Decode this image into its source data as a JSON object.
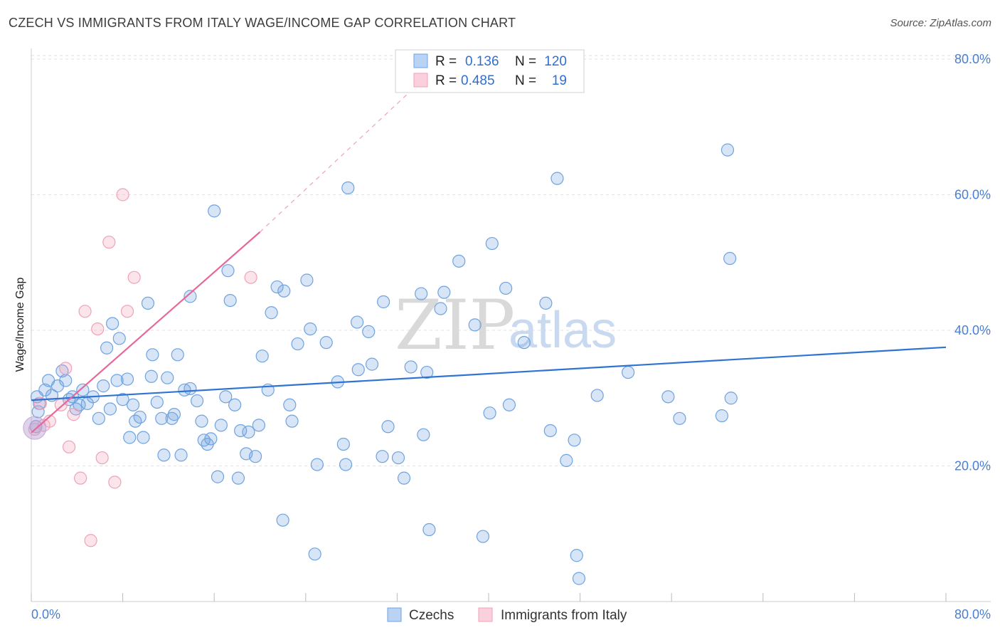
{
  "title": "CZECH VS IMMIGRANTS FROM ITALY WAGE/INCOME GAP CORRELATION CHART",
  "source": "Source: ZipAtlas.com",
  "watermark": {
    "zip": "ZIP",
    "atlas": "atlas"
  },
  "legend_box": {
    "rows": [
      {
        "r_label": "R =",
        "r_value": "0.136",
        "n_label": "N =",
        "n_value": "120",
        "color": "#6fa3e0"
      },
      {
        "r_label": "R =",
        "r_value": "0.485",
        "n_label": "N =",
        "n_value": "19",
        "color": "#f1a0b8"
      }
    ]
  },
  "bottom_legend": [
    {
      "label": "Czechs",
      "color": "#6fa3e0"
    },
    {
      "label": "Immigrants from Italy",
      "color": "#f1a0b8"
    }
  ],
  "chart_data": {
    "type": "scatter",
    "title": "CZECH VS IMMIGRANTS FROM ITALY WAGE/INCOME GAP CORRELATION CHART",
    "xlabel": "",
    "ylabel": "Wage/Income Gap",
    "xlim": [
      0,
      80
    ],
    "ylim": [
      0,
      87
    ],
    "y_ticks": [
      20,
      40,
      60,
      80
    ],
    "y_tick_labels": [
      "20.0%",
      "40.0%",
      "60.0%",
      "80.0%"
    ],
    "x_tick_labels": {
      "min": "0.0%",
      "max": "80.0%"
    },
    "grid": true,
    "series": [
      {
        "name": "Czechs",
        "color": "#6fa3e0",
        "trend": {
          "x0": 0,
          "y0": 29.7,
          "x1": 80,
          "y1": 37.5
        },
        "points": [
          [
            0.4,
            25.8
          ],
          [
            0.5,
            30.2
          ],
          [
            0.6,
            28.0
          ],
          [
            0.7,
            29.2
          ],
          [
            1.2,
            31.2
          ],
          [
            1.5,
            32.6
          ],
          [
            1.8,
            30.4
          ],
          [
            2.3,
            31.8
          ],
          [
            2.7,
            34.0
          ],
          [
            3.0,
            32.6
          ],
          [
            3.3,
            29.8
          ],
          [
            3.6,
            30.2
          ],
          [
            3.9,
            28.4
          ],
          [
            4.2,
            29.0
          ],
          [
            4.5,
            31.2
          ],
          [
            4.9,
            29.2
          ],
          [
            5.4,
            30.2
          ],
          [
            5.9,
            27.0
          ],
          [
            6.3,
            31.8
          ],
          [
            6.6,
            37.4
          ],
          [
            6.9,
            28.4
          ],
          [
            7.1,
            41.0
          ],
          [
            7.5,
            32.6
          ],
          [
            7.7,
            38.8
          ],
          [
            8.0,
            29.8
          ],
          [
            8.4,
            32.8
          ],
          [
            8.6,
            24.2
          ],
          [
            8.9,
            29.0
          ],
          [
            9.1,
            26.6
          ],
          [
            9.5,
            27.2
          ],
          [
            9.8,
            24.2
          ],
          [
            10.2,
            44.0
          ],
          [
            10.5,
            33.2
          ],
          [
            10.6,
            36.4
          ],
          [
            11.0,
            29.4
          ],
          [
            11.4,
            27.0
          ],
          [
            11.6,
            21.6
          ],
          [
            11.9,
            33.0
          ],
          [
            12.3,
            27.0
          ],
          [
            12.5,
            27.6
          ],
          [
            12.8,
            36.4
          ],
          [
            13.1,
            21.6
          ],
          [
            13.4,
            31.2
          ],
          [
            13.9,
            45.0
          ],
          [
            13.9,
            31.4
          ],
          [
            14.5,
            29.6
          ],
          [
            14.9,
            26.6
          ],
          [
            15.1,
            23.8
          ],
          [
            15.4,
            23.2
          ],
          [
            15.7,
            24.0
          ],
          [
            16.0,
            57.6
          ],
          [
            16.3,
            18.4
          ],
          [
            16.6,
            26.0
          ],
          [
            17.0,
            30.2
          ],
          [
            17.2,
            48.8
          ],
          [
            17.4,
            44.4
          ],
          [
            17.8,
            29.0
          ],
          [
            18.1,
            18.2
          ],
          [
            18.3,
            25.2
          ],
          [
            18.8,
            21.8
          ],
          [
            19.0,
            25.0
          ],
          [
            19.6,
            21.4
          ],
          [
            19.9,
            26.0
          ],
          [
            20.2,
            36.2
          ],
          [
            20.7,
            31.2
          ],
          [
            21.0,
            42.6
          ],
          [
            21.5,
            46.4
          ],
          [
            22.0,
            12.0
          ],
          [
            22.1,
            45.8
          ],
          [
            22.6,
            29.0
          ],
          [
            22.8,
            26.6
          ],
          [
            23.3,
            38.0
          ],
          [
            24.1,
            47.4
          ],
          [
            24.4,
            40.2
          ],
          [
            24.8,
            7.0
          ],
          [
            25.0,
            20.2
          ],
          [
            25.8,
            38.2
          ],
          [
            26.8,
            32.4
          ],
          [
            27.3,
            23.2
          ],
          [
            27.5,
            20.2
          ],
          [
            27.7,
            61.0
          ],
          [
            28.5,
            41.2
          ],
          [
            28.6,
            34.2
          ],
          [
            29.5,
            39.8
          ],
          [
            29.8,
            35.0
          ],
          [
            30.7,
            21.4
          ],
          [
            30.8,
            44.2
          ],
          [
            31.2,
            25.8
          ],
          [
            32.1,
            21.2
          ],
          [
            32.6,
            18.2
          ],
          [
            33.2,
            34.6
          ],
          [
            34.1,
            45.4
          ],
          [
            34.3,
            24.6
          ],
          [
            34.6,
            33.8
          ],
          [
            34.8,
            10.6
          ],
          [
            35.8,
            43.2
          ],
          [
            36.1,
            45.6
          ],
          [
            37.4,
            50.2
          ],
          [
            38.8,
            40.8
          ],
          [
            39.5,
            9.6
          ],
          [
            40.1,
            27.8
          ],
          [
            40.3,
            52.8
          ],
          [
            41.5,
            46.2
          ],
          [
            41.8,
            29.0
          ],
          [
            43.1,
            38.2
          ],
          [
            45.0,
            44.0
          ],
          [
            45.4,
            25.2
          ],
          [
            46.0,
            62.4
          ],
          [
            46.8,
            20.8
          ],
          [
            47.5,
            23.8
          ],
          [
            47.7,
            6.8
          ],
          [
            47.9,
            3.4
          ],
          [
            49.5,
            30.4
          ],
          [
            52.2,
            33.8
          ],
          [
            55.7,
            30.2
          ],
          [
            56.7,
            27.0
          ],
          [
            60.9,
            66.6
          ],
          [
            61.1,
            50.6
          ],
          [
            61.2,
            30.0
          ],
          [
            60.4,
            27.4
          ]
        ]
      },
      {
        "name": "Immigrants from Italy",
        "color": "#f1a0b8",
        "trend": {
          "x0": 0,
          "y0": 24.9,
          "x1": 20,
          "y1": 54.5
        },
        "trend_extension": {
          "x0": 20,
          "y0": 54.5,
          "x1": 33,
          "y1": 75.0
        },
        "points": [
          [
            0.3,
            25.4
          ],
          [
            0.8,
            29.2
          ],
          [
            1.1,
            26.0
          ],
          [
            1.6,
            26.6
          ],
          [
            2.6,
            29.0
          ],
          [
            3.0,
            34.4
          ],
          [
            3.3,
            22.8
          ],
          [
            3.7,
            27.6
          ],
          [
            4.3,
            18.2
          ],
          [
            4.7,
            42.8
          ],
          [
            5.2,
            9.0
          ],
          [
            5.8,
            40.2
          ],
          [
            6.2,
            21.2
          ],
          [
            6.8,
            53.0
          ],
          [
            7.3,
            17.6
          ],
          [
            8.0,
            60.0
          ],
          [
            8.4,
            42.8
          ],
          [
            9.0,
            47.8
          ],
          [
            19.2,
            47.8
          ]
        ]
      }
    ]
  }
}
